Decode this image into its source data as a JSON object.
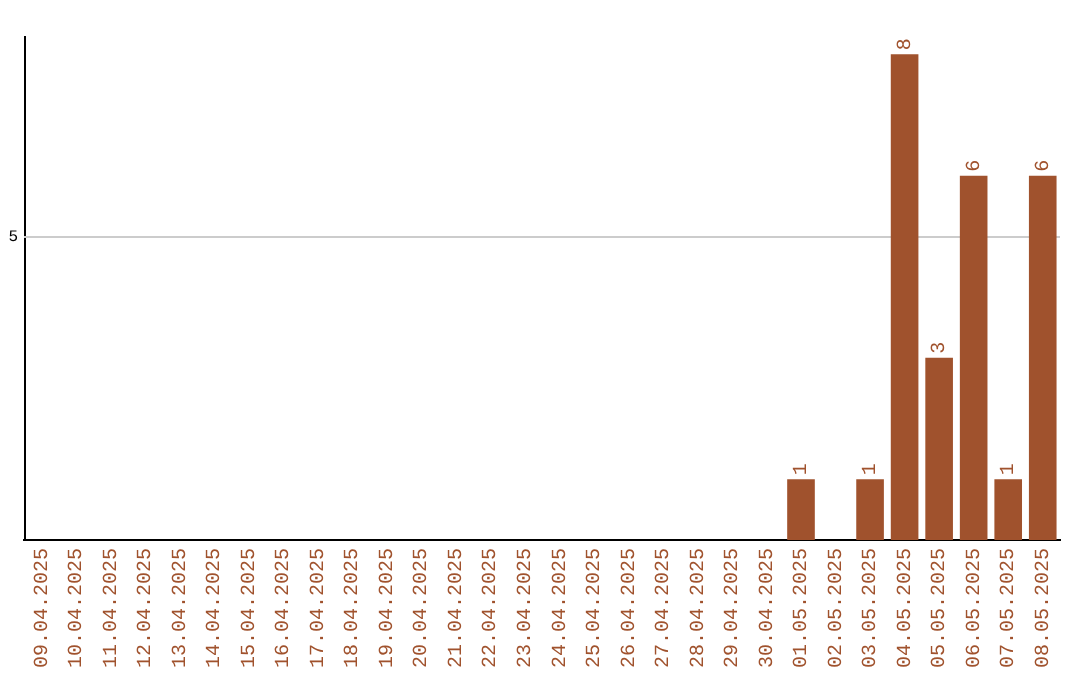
{
  "chart_data": {
    "type": "bar",
    "categories": [
      "09.04.2025",
      "10.04.2025",
      "11.04.2025",
      "12.04.2025",
      "13.04.2025",
      "14.04.2025",
      "15.04.2025",
      "16.04.2025",
      "17.04.2025",
      "18.04.2025",
      "19.04.2025",
      "20.04.2025",
      "21.04.2025",
      "22.04.2025",
      "23.04.2025",
      "24.04.2025",
      "25.04.2025",
      "26.04.2025",
      "27.04.2025",
      "28.04.2025",
      "29.04.2025",
      "30.04.2025",
      "01.05.2025",
      "02.05.2025",
      "03.05.2025",
      "04.05.2025",
      "05.05.2025",
      "06.05.2025",
      "07.05.2025",
      "08.05.2025"
    ],
    "values": [
      null,
      null,
      null,
      null,
      null,
      null,
      null,
      null,
      null,
      null,
      null,
      null,
      null,
      null,
      null,
      null,
      null,
      null,
      null,
      null,
      null,
      null,
      1,
      null,
      1,
      8,
      3,
      6,
      1,
      6
    ],
    "data_labels": true,
    "color": "#a0522d",
    "ylim": [
      0,
      8.3
    ],
    "ref_lines": [
      {
        "axis": "y",
        "value": 5,
        "label": "5",
        "color": "#cccccc"
      }
    ],
    "legend": false
  }
}
